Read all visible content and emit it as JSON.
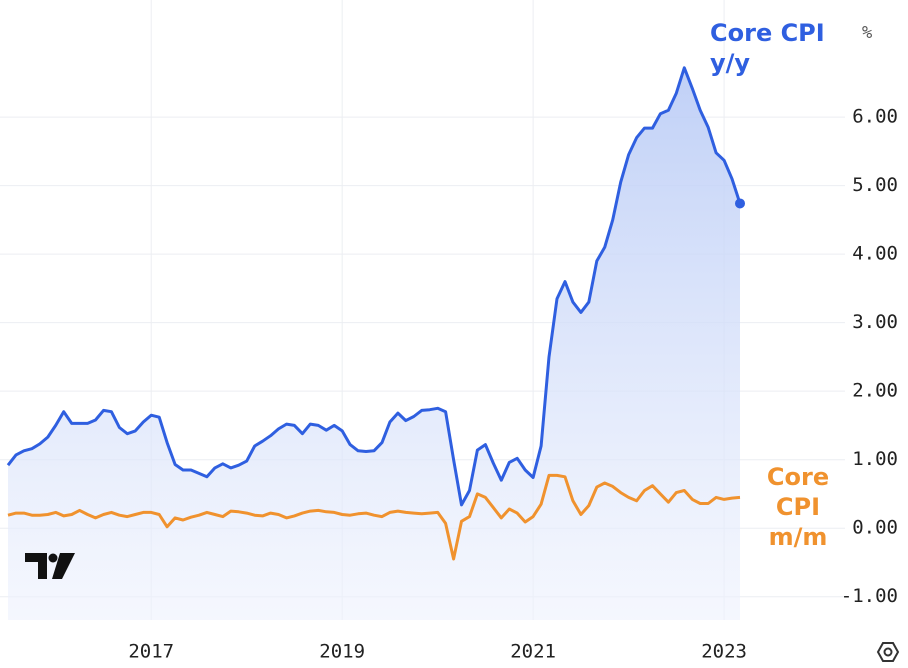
{
  "chart_data": {
    "type": "line",
    "y_unit": "%",
    "categories": [
      null,
      null,
      null,
      null,
      null,
      null,
      null,
      null,
      null,
      null,
      null,
      null,
      null,
      null,
      null,
      null,
      null,
      null,
      "2017",
      null,
      null,
      null,
      null,
      null,
      null,
      null,
      null,
      null,
      null,
      null,
      null,
      null,
      null,
      null,
      null,
      null,
      null,
      null,
      null,
      null,
      null,
      null,
      "2019",
      null,
      null,
      null,
      null,
      null,
      null,
      null,
      null,
      null,
      null,
      null,
      null,
      null,
      null,
      null,
      null,
      null,
      null,
      null,
      null,
      null,
      null,
      null,
      "2021",
      null,
      null,
      null,
      null,
      null,
      null,
      null,
      null,
      null,
      null,
      null,
      null,
      null,
      null,
      null,
      null,
      null,
      null,
      null,
      null,
      null,
      null,
      null,
      "2023",
      null,
      null
    ],
    "series": [
      {
        "name": "Core CPI y/y",
        "color": "#2f5fe0",
        "area": true,
        "values": [
          0.92,
          1.07,
          1.13,
          1.16,
          1.23,
          1.33,
          1.5,
          1.7,
          1.53,
          1.53,
          1.53,
          1.58,
          1.72,
          1.7,
          1.47,
          1.38,
          1.42,
          1.55,
          1.65,
          1.62,
          1.25,
          0.93,
          0.85,
          0.85,
          0.8,
          0.75,
          0.88,
          0.94,
          0.88,
          0.92,
          0.98,
          1.2,
          1.27,
          1.35,
          1.45,
          1.52,
          1.5,
          1.38,
          1.52,
          1.5,
          1.43,
          1.5,
          1.42,
          1.22,
          1.13,
          1.12,
          1.13,
          1.25,
          1.55,
          1.68,
          1.57,
          1.63,
          1.72,
          1.73,
          1.75,
          1.7,
          1.0,
          0.34,
          0.55,
          1.14,
          1.22,
          0.95,
          0.7,
          0.96,
          1.02,
          0.85,
          0.74,
          1.2,
          2.5,
          3.35,
          3.6,
          3.3,
          3.15,
          3.3,
          3.9,
          4.1,
          4.5,
          5.05,
          5.45,
          5.7,
          5.84,
          5.84,
          6.05,
          6.1,
          6.35,
          6.72,
          6.42,
          6.1,
          5.85,
          5.48,
          5.37,
          5.1,
          4.74
        ]
      },
      {
        "name": "Core CPI m/m",
        "color": "#f0922e",
        "area": false,
        "values": [
          0.19,
          0.22,
          0.22,
          0.19,
          0.19,
          0.2,
          0.23,
          0.18,
          0.2,
          0.26,
          0.2,
          0.15,
          0.2,
          0.23,
          0.19,
          0.17,
          0.2,
          0.23,
          0.23,
          0.2,
          0.02,
          0.15,
          0.12,
          0.16,
          0.19,
          0.23,
          0.2,
          0.17,
          0.25,
          0.24,
          0.22,
          0.19,
          0.18,
          0.22,
          0.2,
          0.15,
          0.18,
          0.22,
          0.25,
          0.26,
          0.24,
          0.23,
          0.2,
          0.19,
          0.21,
          0.22,
          0.19,
          0.17,
          0.23,
          0.25,
          0.23,
          0.22,
          0.21,
          0.22,
          0.23,
          0.07,
          -0.45,
          0.1,
          0.17,
          0.5,
          0.45,
          0.3,
          0.15,
          0.28,
          0.22,
          0.09,
          0.17,
          0.35,
          0.77,
          0.77,
          0.75,
          0.4,
          0.2,
          0.33,
          0.6,
          0.66,
          0.61,
          0.52,
          0.45,
          0.4,
          0.55,
          0.62,
          0.5,
          0.38,
          0.52,
          0.55,
          0.42,
          0.36,
          0.36,
          0.45,
          0.42,
          0.44,
          0.45
        ]
      }
    ],
    "ylim": [
      -1.34,
      7.71
    ],
    "yticks": [
      {
        "value": -1,
        "label": "-1.00"
      },
      {
        "value": 0,
        "label": "0.00"
      },
      {
        "value": 1,
        "label": "1.00"
      },
      {
        "value": 2,
        "label": "2.00"
      },
      {
        "value": 3,
        "label": "3.00"
      },
      {
        "value": 4,
        "label": "4.00"
      },
      {
        "value": 5,
        "label": "5.00"
      },
      {
        "value": 6,
        "label": "6.00"
      }
    ],
    "grid": true
  }
}
